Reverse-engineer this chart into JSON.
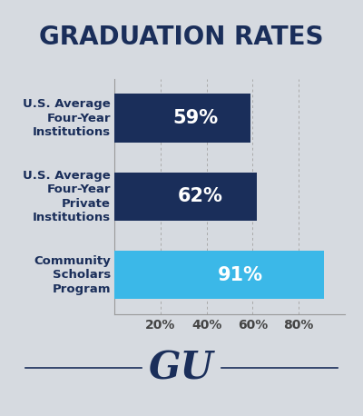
{
  "title": "GRADUATION RATES",
  "title_fontsize": 20,
  "title_color": "#1a2e5a",
  "background_color": "#d6dae0",
  "plot_bg_color": "#d6dae0",
  "categories": [
    "U.S. Average\nFour-Year\nInstitutions",
    "U.S. Average\nFour-Year\nPrivate\nInstitutions",
    "Community\nScholars\nProgram"
  ],
  "values": [
    59,
    62,
    91
  ],
  "bar_colors": [
    "#1a2e5a",
    "#1a2e5a",
    "#3bb8e8"
  ],
  "value_labels": [
    "59%",
    "62%",
    "91%"
  ],
  "label_fontsize": 15,
  "label_color": "#ffffff",
  "label_color_dark": "#1a2e5a",
  "tick_labels": [
    "20%",
    "40%",
    "60%",
    "80%"
  ],
  "tick_values": [
    20,
    40,
    60,
    80
  ],
  "xlim": [
    0,
    100
  ],
  "gu_text": "GU",
  "gu_color": "#1a2e5a",
  "gu_fontsize": 30,
  "axis_label_fontsize": 10,
  "axis_label_color": "#444444",
  "grid_color": "#aaaaaa",
  "bar_height": 0.62,
  "ylabel_color": "#1a2e5a",
  "cat_fontsize": 9.5,
  "spine_color": "#999999"
}
